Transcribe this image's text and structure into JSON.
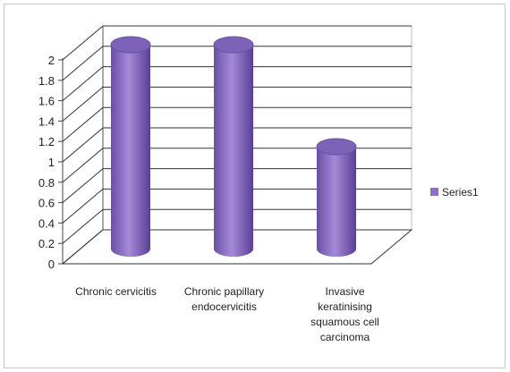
{
  "chart_data": {
    "type": "bar",
    "style": "3d-cylinder",
    "categories": [
      [
        "Chronic cervicitis"
      ],
      [
        "Chronic papillary",
        "endocervicitis"
      ],
      [
        "Invasive",
        "keratinising",
        "squamous  cell",
        "carcinoma"
      ]
    ],
    "series": [
      {
        "name": "Series1",
        "values": [
          2,
          2,
          1
        ],
        "color": "#8b6fc2"
      }
    ],
    "ylim": [
      0,
      2
    ],
    "yticks": [
      "0",
      "0.2",
      "0.4",
      "0.6",
      "0.8",
      "1",
      "1.2",
      "1.4",
      "1.6",
      "1.8",
      "2"
    ],
    "grid": true,
    "legend": "right"
  }
}
